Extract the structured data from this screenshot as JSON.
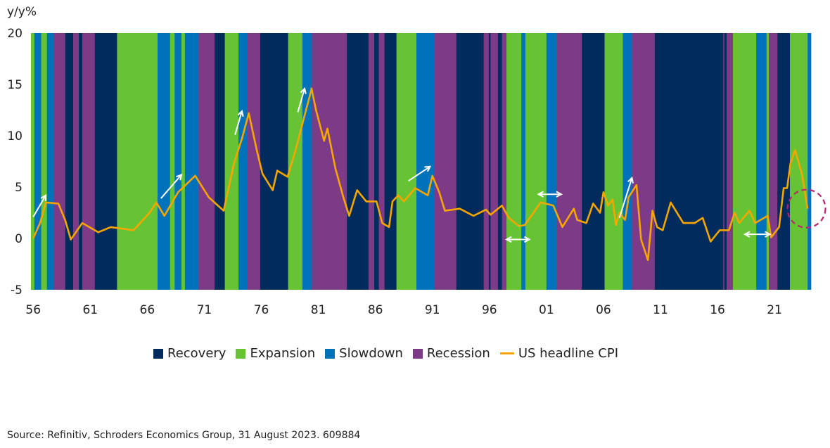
{
  "chart_data": {
    "type": "line",
    "title": "",
    "ylabel": "y/y%",
    "xlabel": "",
    "ylim": [
      -5,
      20
    ],
    "xlim": [
      1955.8,
      2024.2
    ],
    "yticks": [
      -5,
      0,
      5,
      10,
      15,
      20
    ],
    "ytick_labels": [
      "-5",
      "0",
      "5",
      "10",
      "15",
      "20"
    ],
    "xticks": [
      1956,
      1961,
      1966,
      1971,
      1976,
      1981,
      1986,
      1991,
      1996,
      2001,
      2006,
      2011,
      2016,
      2021
    ],
    "xtick_labels": [
      "56",
      "61",
      "66",
      "71",
      "76",
      "81",
      "86",
      "91",
      "96",
      "01",
      "06",
      "11",
      "16",
      "21"
    ],
    "grid": false,
    "legend_position": "bottom",
    "colors": {
      "Recovery": "#002b5c",
      "Expansion": "#66c434",
      "Slowdown": "#0072b9",
      "Recession": "#7d3a87",
      "US headline CPI": "#f7a600",
      "annotation": "#ffffff",
      "circle": "#b8266e"
    },
    "legend": [
      {
        "label": "Recovery",
        "kind": "box"
      },
      {
        "label": "Expansion",
        "kind": "box"
      },
      {
        "label": "Slowdown",
        "kind": "box"
      },
      {
        "label": "Recession",
        "kind": "box"
      },
      {
        "label": "US headline CPI",
        "kind": "line"
      }
    ],
    "phases": [
      {
        "start": 1955.8,
        "end": 1956.1,
        "phase": "Expansion"
      },
      {
        "start": 1956.1,
        "end": 1956.7,
        "phase": "Slowdown"
      },
      {
        "start": 1956.7,
        "end": 1957.2,
        "phase": "Expansion"
      },
      {
        "start": 1957.2,
        "end": 1957.8,
        "phase": "Slowdown"
      },
      {
        "start": 1957.8,
        "end": 1958.8,
        "phase": "Recession"
      },
      {
        "start": 1958.8,
        "end": 1959.5,
        "phase": "Recovery"
      },
      {
        "start": 1959.5,
        "end": 1960.0,
        "phase": "Recession"
      },
      {
        "start": 1960.0,
        "end": 1960.3,
        "phase": "Recovery"
      },
      {
        "start": 1960.3,
        "end": 1961.4,
        "phase": "Recession"
      },
      {
        "start": 1961.4,
        "end": 1963.35,
        "phase": "Recovery"
      },
      {
        "start": 1963.35,
        "end": 1966.9,
        "phase": "Expansion"
      },
      {
        "start": 1966.9,
        "end": 1968.0,
        "phase": "Slowdown"
      },
      {
        "start": 1968.0,
        "end": 1968.4,
        "phase": "Expansion"
      },
      {
        "start": 1968.4,
        "end": 1969.0,
        "phase": "Slowdown"
      },
      {
        "start": 1969.0,
        "end": 1969.3,
        "phase": "Expansion"
      },
      {
        "start": 1969.3,
        "end": 1970.5,
        "phase": "Slowdown"
      },
      {
        "start": 1970.5,
        "end": 1971.9,
        "phase": "Recession"
      },
      {
        "start": 1971.9,
        "end": 1972.8,
        "phase": "Recovery"
      },
      {
        "start": 1972.8,
        "end": 1974.0,
        "phase": "Expansion"
      },
      {
        "start": 1974.0,
        "end": 1974.8,
        "phase": "Slowdown"
      },
      {
        "start": 1974.8,
        "end": 1975.9,
        "phase": "Recession"
      },
      {
        "start": 1975.9,
        "end": 1978.35,
        "phase": "Recovery"
      },
      {
        "start": 1978.35,
        "end": 1979.6,
        "phase": "Expansion"
      },
      {
        "start": 1979.6,
        "end": 1980.4,
        "phase": "Slowdown"
      },
      {
        "start": 1980.4,
        "end": 1983.5,
        "phase": "Recession"
      },
      {
        "start": 1983.5,
        "end": 1985.4,
        "phase": "Recovery"
      },
      {
        "start": 1985.4,
        "end": 1985.9,
        "phase": "Recession"
      },
      {
        "start": 1985.9,
        "end": 1986.3,
        "phase": "Recovery"
      },
      {
        "start": 1986.3,
        "end": 1986.8,
        "phase": "Recession"
      },
      {
        "start": 1986.8,
        "end": 1987.85,
        "phase": "Recovery"
      },
      {
        "start": 1987.85,
        "end": 1989.6,
        "phase": "Expansion"
      },
      {
        "start": 1989.6,
        "end": 1991.2,
        "phase": "Slowdown"
      },
      {
        "start": 1991.2,
        "end": 1993.1,
        "phase": "Recession"
      },
      {
        "start": 1993.1,
        "end": 1995.5,
        "phase": "Recovery"
      },
      {
        "start": 1995.5,
        "end": 1995.95,
        "phase": "Recession"
      },
      {
        "start": 1995.95,
        "end": 1996.1,
        "phase": "Recovery"
      },
      {
        "start": 1996.1,
        "end": 1996.75,
        "phase": "Recession"
      },
      {
        "start": 1996.75,
        "end": 1997.1,
        "phase": "Recovery"
      },
      {
        "start": 1997.1,
        "end": 1997.5,
        "phase": "Recession"
      },
      {
        "start": 1997.5,
        "end": 1998.8,
        "phase": "Expansion"
      },
      {
        "start": 1998.8,
        "end": 1999.15,
        "phase": "Slowdown"
      },
      {
        "start": 1999.15,
        "end": 2001.0,
        "phase": "Expansion"
      },
      {
        "start": 2001.0,
        "end": 2001.9,
        "phase": "Slowdown"
      },
      {
        "start": 2001.9,
        "end": 2004.1,
        "phase": "Recession"
      },
      {
        "start": 2004.1,
        "end": 2006.1,
        "phase": "Recovery"
      },
      {
        "start": 2006.1,
        "end": 2007.7,
        "phase": "Expansion"
      },
      {
        "start": 2007.7,
        "end": 2008.5,
        "phase": "Slowdown"
      },
      {
        "start": 2008.5,
        "end": 2010.5,
        "phase": "Recession"
      },
      {
        "start": 2010.5,
        "end": 2016.5,
        "phase": "Recovery"
      },
      {
        "start": 2016.5,
        "end": 2016.6,
        "phase": "Recession"
      },
      {
        "start": 2016.6,
        "end": 2016.8,
        "phase": "Recovery"
      },
      {
        "start": 2016.8,
        "end": 2017.35,
        "phase": "Recession"
      },
      {
        "start": 2017.35,
        "end": 2019.4,
        "phase": "Expansion"
      },
      {
        "start": 2019.4,
        "end": 2020.3,
        "phase": "Slowdown"
      },
      {
        "start": 2020.3,
        "end": 2020.5,
        "phase": "Expansion"
      },
      {
        "start": 2020.5,
        "end": 2021.25,
        "phase": "Recession"
      },
      {
        "start": 2021.25,
        "end": 2022.35,
        "phase": "Recovery"
      },
      {
        "start": 2022.35,
        "end": 2023.9,
        "phase": "Expansion"
      },
      {
        "start": 2023.9,
        "end": 2024.2,
        "phase": "Slowdown"
      }
    ],
    "series": [
      {
        "name": "US headline CPI",
        "x": [
          1956.0,
          1956.6,
          1957.1,
          1958.2,
          1958.8,
          1959.3,
          1960.3,
          1961.7,
          1962.8,
          1964.8,
          1966.2,
          1966.8,
          1967.5,
          1968.7,
          1970.2,
          1971.4,
          1972.7,
          1973.6,
          1974.3,
          1974.9,
          1975.6,
          1976.1,
          1977.0,
          1977.4,
          1978.3,
          1979.0,
          1980.3,
          1980.4,
          1980.8,
          1981.5,
          1981.8,
          1982.5,
          1983.2,
          1983.7,
          1984.4,
          1985.2,
          1986.1,
          1986.6,
          1987.2,
          1987.5,
          1988.0,
          1988.5,
          1989.5,
          1990.6,
          1991.0,
          1991.6,
          1992.1,
          1993.4,
          1994.6,
          1995.7,
          1996.1,
          1997.1,
          1997.7,
          1998.6,
          1999.1,
          2000.5,
          2001.6,
          2002.4,
          2003.4,
          2003.7,
          2004.5,
          2005.1,
          2005.7,
          2006.0,
          2006.4,
          2006.8,
          2007.1,
          2007.4,
          2007.9,
          2008.2,
          2008.9,
          2009.3,
          2009.9,
          2010.3,
          2010.7,
          2011.2,
          2011.9,
          2013.0,
          2014.0,
          2014.7,
          2015.4,
          2016.2,
          2017.0,
          2017.5,
          2017.9,
          2018.8,
          2019.3,
          2020.4,
          2020.7,
          2021.4,
          2021.8,
          2022.1,
          2022.4,
          2022.8,
          2023.4,
          2023.9
        ],
        "y": [
          0.0,
          1.5,
          3.5,
          3.4,
          1.8,
          -0.1,
          1.5,
          0.6,
          1.1,
          0.8,
          2.5,
          3.5,
          2.2,
          4.5,
          6.1,
          4.0,
          2.7,
          7.3,
          9.7,
          12.2,
          8.6,
          6.3,
          4.7,
          6.6,
          6.0,
          8.6,
          14.1,
          14.6,
          12.5,
          9.5,
          10.7,
          6.8,
          4.0,
          2.2,
          4.7,
          3.6,
          3.6,
          1.5,
          1.1,
          3.6,
          4.2,
          3.6,
          4.9,
          4.2,
          6.1,
          4.5,
          2.7,
          2.9,
          2.2,
          2.8,
          2.3,
          3.2,
          2.0,
          1.2,
          1.3,
          3.5,
          3.2,
          1.1,
          2.9,
          1.8,
          1.5,
          3.4,
          2.5,
          4.5,
          3.2,
          3.8,
          1.3,
          2.5,
          1.8,
          4.0,
          5.2,
          -0.1,
          -2.1,
          2.7,
          1.1,
          0.8,
          3.5,
          1.5,
          1.5,
          2.0,
          -0.3,
          0.8,
          0.8,
          2.5,
          1.5,
          2.7,
          1.5,
          2.2,
          0.1,
          1.1,
          4.9,
          4.9,
          7.3,
          8.6,
          6.3,
          2.9
        ]
      }
    ],
    "annotations": {
      "up_arrows": [
        [
          1956.0,
          2.1,
          1957.1,
          4.2
        ],
        [
          1967.2,
          3.9,
          1969.0,
          6.2
        ],
        [
          1973.7,
          10.1,
          1974.3,
          12.4
        ],
        [
          1979.2,
          12.3,
          1979.8,
          14.6
        ],
        [
          1988.9,
          5.6,
          1990.8,
          7.0
        ],
        [
          2007.4,
          2.0,
          2008.5,
          5.9
        ]
      ],
      "double_arrows": [
        [
          1997.5,
          -0.1,
          1999.5,
          -0.1
        ],
        [
          2000.3,
          4.3,
          2002.3,
          4.3
        ],
        [
          2018.4,
          0.4,
          2020.6,
          0.4
        ]
      ],
      "circle_center": [
        2023.8,
        2.9
      ]
    }
  },
  "source": "Source: Refinitiv, Schroders Economics Group, 31 August 2023. 609884"
}
